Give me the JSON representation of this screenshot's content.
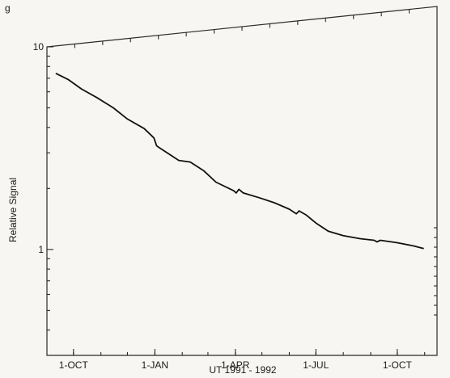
{
  "page_label": "g",
  "chart_data": {
    "type": "line",
    "title": "",
    "xlabel": "UT 1991 - 1992",
    "ylabel": "Relative Signal",
    "yscale": "log",
    "ylim": [
      0.3,
      10
    ],
    "xlim": [
      "1991-09-01",
      "1992-11-15"
    ],
    "x_ticks": [
      {
        "date": "1991-10-01",
        "label": "1-OCT"
      },
      {
        "date": "1992-01-01",
        "label": "1-JAN"
      },
      {
        "date": "1992-04-01",
        "label": "1-APR"
      },
      {
        "date": "1992-07-01",
        "label": "1-JUL"
      },
      {
        "date": "1992-10-01",
        "label": "1-OCT"
      }
    ],
    "y_ticks": [
      {
        "value": 10,
        "label": "10"
      },
      {
        "value": 1,
        "label": "1"
      }
    ],
    "grid": false,
    "legend": "none",
    "series": [
      {
        "points": [
          [
            "1991-09-11",
            7.4
          ],
          [
            "1991-09-25",
            6.9
          ],
          [
            "1991-10-10",
            6.2
          ],
          [
            "1991-10-28",
            5.6
          ],
          [
            "1991-11-15",
            5.0
          ],
          [
            "1991-12-01",
            4.4
          ],
          [
            "1991-12-20",
            3.95
          ],
          [
            "1991-12-31",
            3.55
          ],
          [
            "1992-01-03",
            3.25
          ],
          [
            "1992-01-05",
            3.2
          ],
          [
            "1992-01-15",
            3.0
          ],
          [
            "1992-01-28",
            2.75
          ],
          [
            "1992-02-10",
            2.7
          ],
          [
            "1992-02-25",
            2.45
          ],
          [
            "1992-03-10",
            2.15
          ],
          [
            "1992-03-30",
            1.95
          ],
          [
            "1992-04-02",
            1.9
          ],
          [
            "1992-04-05",
            1.98
          ],
          [
            "1992-04-10",
            1.9
          ],
          [
            "1992-04-28",
            1.8
          ],
          [
            "1992-05-15",
            1.7
          ],
          [
            "1992-06-01",
            1.58
          ],
          [
            "1992-06-09",
            1.5
          ],
          [
            "1992-06-12",
            1.55
          ],
          [
            "1992-06-20",
            1.48
          ],
          [
            "1992-07-01",
            1.35
          ],
          [
            "1992-07-15",
            1.23
          ],
          [
            "1992-08-01",
            1.17
          ],
          [
            "1992-08-20",
            1.13
          ],
          [
            "1992-09-05",
            1.11
          ],
          [
            "1992-09-08",
            1.09
          ],
          [
            "1992-09-12",
            1.11
          ],
          [
            "1992-10-01",
            1.08
          ],
          [
            "1992-10-20",
            1.04
          ],
          [
            "1992-10-31",
            1.01
          ]
        ]
      }
    ],
    "line_color": "#111111"
  }
}
